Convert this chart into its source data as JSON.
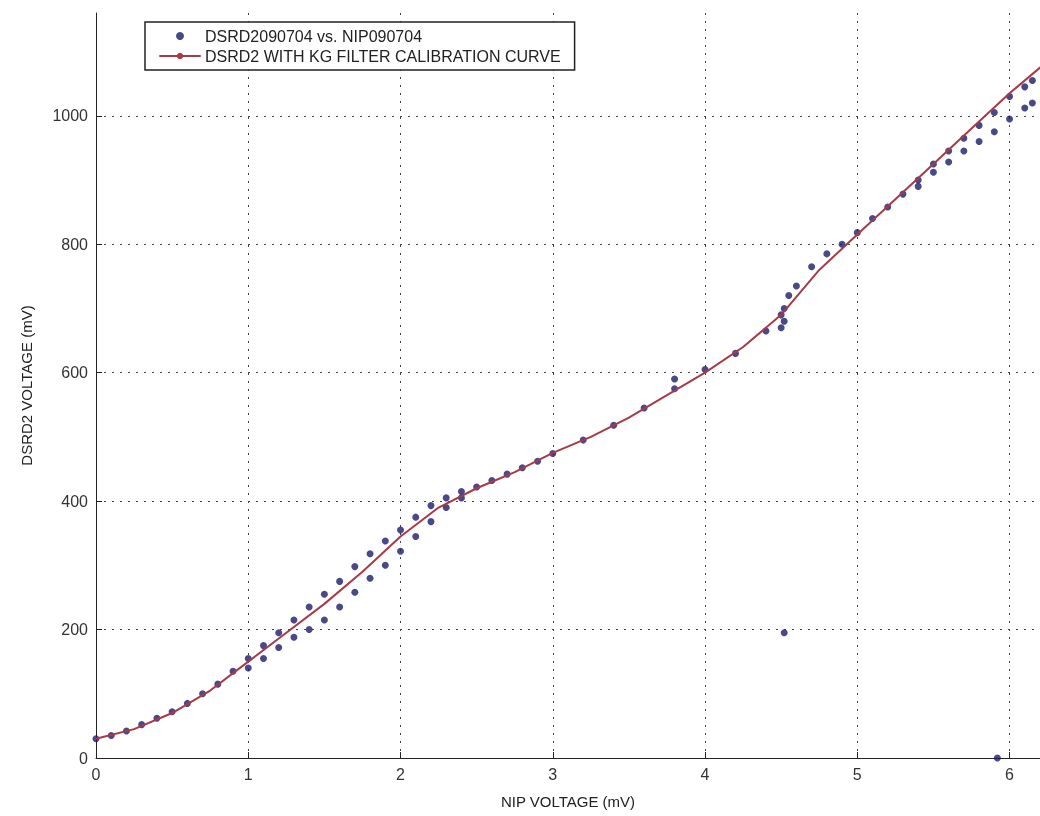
{
  "chart_data": {
    "type": "scatter",
    "xlabel": "NIP VOLTAGE (mV)",
    "ylabel": "DSRD2 VOLTAGE (mV)",
    "xlim": [
      0,
      6.2
    ],
    "xticks": [
      0,
      1,
      2,
      3,
      4,
      5,
      6
    ],
    "ylim": [
      0,
      1160
    ],
    "yticks": [
      0,
      200,
      400,
      600,
      800,
      1000
    ],
    "grid": true,
    "legend": "top left",
    "marker": "circle",
    "series": [
      {
        "name": "DSRD2090704 vs. NIP090704",
        "color": "#1c1c6a",
        "x": [
          0,
          0.1,
          0.2,
          0.3,
          0.4,
          0.5,
          0.6,
          0.7,
          0.8,
          0.9,
          1.0,
          1.1,
          1.2,
          1.3,
          1.4,
          1.5,
          1.6,
          1.7,
          1.8,
          1.9,
          2.0,
          2.1,
          2.2,
          2.3,
          2.4,
          2.5,
          2.6,
          2.7,
          2.8,
          2.9,
          3.0,
          3.2,
          3.4,
          3.6,
          3.8,
          3.8,
          4.0,
          4.2,
          4.4,
          4.5,
          4.52,
          4.55,
          4.6,
          4.7,
          4.8,
          4.9,
          5.0,
          5.1,
          5.2,
          5.3,
          5.4,
          5.5,
          5.6,
          5.7,
          5.8,
          5.9,
          6.0,
          6.1,
          6.15,
          1.0,
          1.1,
          1.2,
          1.3,
          1.4,
          1.5,
          1.6,
          1.7,
          1.8,
          1.9,
          2.0,
          2.1,
          2.2,
          2.3,
          2.4,
          5.4,
          5.5,
          5.6,
          5.7,
          5.8,
          5.9,
          6.0,
          6.1,
          6.15,
          4.5,
          4.52,
          4.52,
          5.92
        ],
        "values": [
          30,
          35,
          42,
          52,
          62,
          72,
          85,
          100,
          115,
          135,
          155,
          175,
          195,
          215,
          235,
          255,
          275,
          298,
          318,
          338,
          355,
          375,
          393,
          405,
          415,
          422,
          432,
          442,
          452,
          462,
          474,
          495,
          518,
          545,
          575,
          590,
          605,
          630,
          665,
          690,
          700,
          720,
          735,
          765,
          785,
          800,
          818,
          840,
          858,
          878,
          900,
          925,
          945,
          965,
          985,
          1005,
          1030,
          1045,
          1055,
          140,
          155,
          172,
          188,
          200,
          215,
          235,
          258,
          280,
          300,
          322,
          345,
          368,
          390,
          405,
          890,
          912,
          928,
          945,
          960,
          975,
          995,
          1012,
          1020,
          670,
          680,
          195,
          0
        ]
      },
      {
        "name": "DSRD2 WITH KG FILTER CALIBRATION CURVE",
        "type": "line",
        "color": "#a83a48",
        "marker": "none",
        "line_style": "solid",
        "x": [
          0,
          0.25,
          0.5,
          0.75,
          1,
          1.25,
          1.5,
          1.75,
          2,
          2.25,
          2.5,
          2.75,
          3,
          3.25,
          3.5,
          3.75,
          4,
          4.25,
          4.5,
          4.75,
          5,
          5.25,
          5.5,
          5.75,
          6,
          6.2
        ],
        "values": [
          30,
          45,
          70,
          105,
          150,
          195,
          240,
          290,
          345,
          390,
          420,
          445,
          475,
          500,
          530,
          565,
          600,
          640,
          690,
          760,
          815,
          870,
          925,
          980,
          1035,
          1075
        ]
      }
    ]
  }
}
